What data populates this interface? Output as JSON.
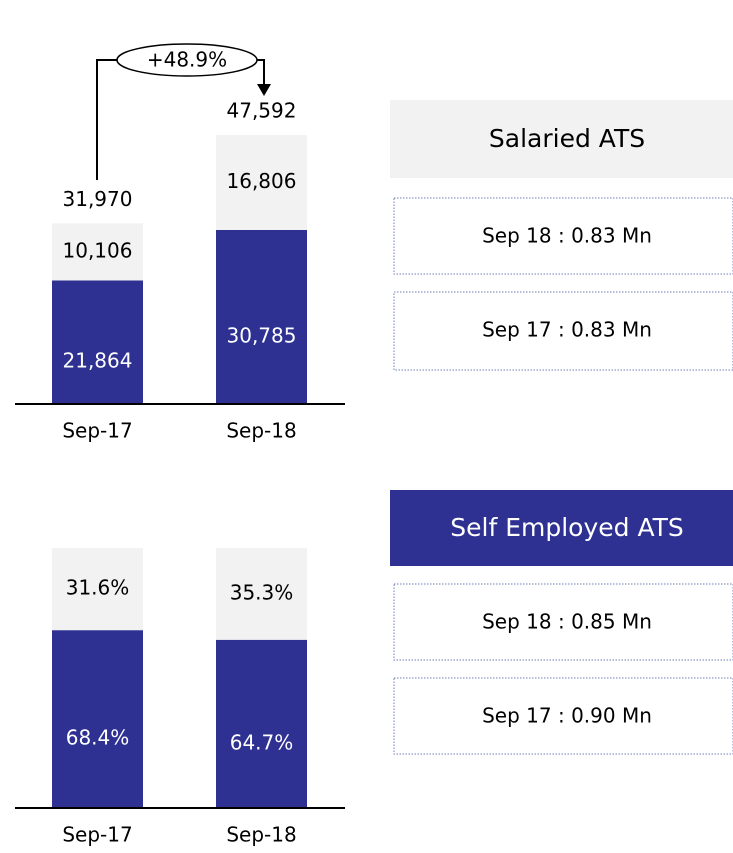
{
  "chart_data": [
    {
      "type": "bar",
      "stacked": true,
      "categories": [
        "Sep-17",
        "Sep-18"
      ],
      "series": [
        {
          "color": "#2e3192",
          "values": [
            21864,
            30785
          ],
          "value_labels": [
            "21,864",
            "30,785"
          ]
        },
        {
          "color": "#f2f2f2",
          "values": [
            10106,
            16806
          ],
          "value_labels": [
            "10,106",
            "16,806"
          ]
        }
      ],
      "totals": [
        31970,
        47592
      ],
      "total_labels": [
        "31,970",
        "47,592"
      ],
      "annotation": "+48.9%"
    },
    {
      "type": "bar",
      "stacked": true,
      "categories": [
        "Sep-17",
        "Sep-18"
      ],
      "series": [
        {
          "color": "#2e3192",
          "values": [
            68.4,
            64.7
          ],
          "value_labels": [
            "68.4%",
            "64.7%"
          ]
        },
        {
          "color": "#f2f2f2",
          "values": [
            31.6,
            35.3
          ],
          "value_labels": [
            "31.6%",
            "35.3%"
          ]
        }
      ]
    }
  ],
  "panels": [
    {
      "title": "Salaried ATS",
      "items": [
        "Sep 18 : 0.83 Mn",
        "Sep 17 : 0.83 Mn"
      ]
    },
    {
      "title": "Self Employed ATS",
      "items": [
        "Sep 18 : 0.85 Mn",
        "Sep 17 : 0.90 Mn"
      ]
    }
  ]
}
